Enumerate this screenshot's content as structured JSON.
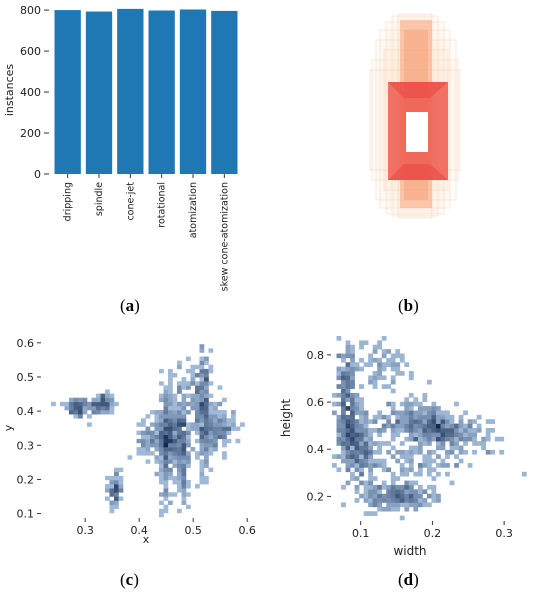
{
  "panels": [
    {
      "label_open": "(",
      "label_letter": "a",
      "label_close": ")"
    },
    {
      "label_open": "(",
      "label_letter": "b",
      "label_close": ")"
    },
    {
      "label_open": "(",
      "label_letter": "c",
      "label_close": ")"
    },
    {
      "label_open": "(",
      "label_letter": "d",
      "label_close": ")"
    }
  ],
  "chart_data": [
    {
      "type": "bar",
      "categories": [
        "dripping",
        "spindle",
        "cone-jet",
        "rotational",
        "atomization",
        "skew cone-atomization"
      ],
      "values": [
        800,
        793,
        806,
        798,
        803,
        796
      ],
      "xlabel": "",
      "ylabel": "instances",
      "ylim": [
        0,
        820
      ],
      "yticks": [
        0,
        200,
        400,
        600,
        800
      ],
      "color": "#1f77b4",
      "grid": false
    },
    {
      "type": "heatmap",
      "description_type": "overlay",
      "colors": {
        "outer": "#fde0c8",
        "mid": "#f8a27a",
        "core": "#ef5b50",
        "center": "#ffffff"
      },
      "grid": false
    },
    {
      "type": "heatmap",
      "xlabel": "x",
      "ylabel": "y",
      "xlim": [
        0.22,
        0.62
      ],
      "ylim": [
        0.09,
        0.62
      ],
      "xticks": [
        0.3,
        0.4,
        0.5,
        0.6
      ],
      "yticks": [
        0.1,
        0.2,
        0.3,
        0.4,
        0.5,
        0.6
      ],
      "xtick_labels": [
        "0.3",
        "0.4",
        "0.5",
        "0.6"
      ],
      "ytick_labels": [
        "0.1",
        "0.2",
        "0.3",
        "0.4",
        "0.5",
        "0.6"
      ],
      "color": "#1f77b4",
      "grid": false,
      "clusters": [
        {
          "x": 0.285,
          "y": 0.41,
          "sx": 0.01,
          "sy": 0.015,
          "n": 35
        },
        {
          "x": 0.33,
          "y": 0.42,
          "sx": 0.012,
          "sy": 0.015,
          "n": 40
        },
        {
          "x": 0.355,
          "y": 0.17,
          "sx": 0.005,
          "sy": 0.025,
          "n": 30
        },
        {
          "x": 0.46,
          "y": 0.33,
          "sx": 0.015,
          "sy": 0.035,
          "n": 90
        },
        {
          "x": 0.45,
          "y": 0.3,
          "sx": 0.006,
          "sy": 0.09,
          "n": 70
        },
        {
          "x": 0.48,
          "y": 0.28,
          "sx": 0.006,
          "sy": 0.08,
          "n": 60
        },
        {
          "x": 0.52,
          "y": 0.4,
          "sx": 0.006,
          "sy": 0.09,
          "n": 80
        },
        {
          "x": 0.545,
          "y": 0.35,
          "sx": 0.015,
          "sy": 0.03,
          "n": 55
        },
        {
          "x": 0.5,
          "y": 0.45,
          "sx": 0.02,
          "sy": 0.05,
          "n": 40
        },
        {
          "x": 0.42,
          "y": 0.32,
          "sx": 0.012,
          "sy": 0.03,
          "n": 25
        }
      ]
    },
    {
      "type": "heatmap",
      "xlabel": "width",
      "ylabel": "height",
      "xlim": [
        0.06,
        0.35
      ],
      "ylim": [
        0.1,
        0.88
      ],
      "xticks": [
        0.1,
        0.2,
        0.3
      ],
      "yticks": [
        0.2,
        0.4,
        0.6,
        0.8
      ],
      "xtick_labels": [
        "0.1",
        "0.2",
        "0.3"
      ],
      "ytick_labels": [
        "0.2",
        "0.4",
        "0.6",
        "0.8"
      ],
      "color": "#1f77b4",
      "grid": false,
      "clusters": [
        {
          "x": 0.085,
          "y": 0.48,
          "sx": 0.01,
          "sy": 0.06,
          "n": 90
        },
        {
          "x": 0.08,
          "y": 0.68,
          "sx": 0.006,
          "sy": 0.08,
          "n": 50
        },
        {
          "x": 0.1,
          "y": 0.38,
          "sx": 0.015,
          "sy": 0.06,
          "n": 60
        },
        {
          "x": 0.15,
          "y": 0.2,
          "sx": 0.025,
          "sy": 0.03,
          "n": 80
        },
        {
          "x": 0.17,
          "y": 0.52,
          "sx": 0.03,
          "sy": 0.04,
          "n": 70
        },
        {
          "x": 0.21,
          "y": 0.48,
          "sx": 0.02,
          "sy": 0.03,
          "n": 60
        },
        {
          "x": 0.13,
          "y": 0.75,
          "sx": 0.02,
          "sy": 0.06,
          "n": 25
        },
        {
          "x": 0.23,
          "y": 0.45,
          "sx": 0.03,
          "sy": 0.05,
          "n": 40
        },
        {
          "x": 0.18,
          "y": 0.35,
          "sx": 0.03,
          "sy": 0.05,
          "n": 30
        }
      ]
    }
  ]
}
